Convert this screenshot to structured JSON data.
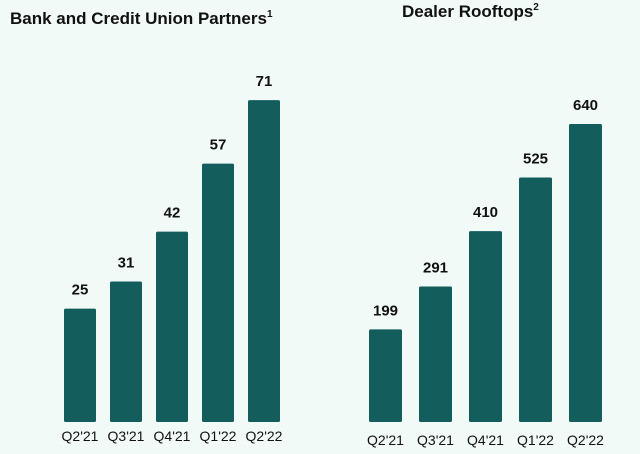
{
  "colors": {
    "bar": "#135e5c",
    "background": "#f2faf8",
    "text": "#111111"
  },
  "chart_data": [
    {
      "type": "bar",
      "title": "Bank and Credit Union Partners",
      "title_superscript": "1",
      "categories": [
        "Q2'21",
        "Q3'21",
        "Q4'21",
        "Q1'22",
        "Q2'22"
      ],
      "values": [
        25,
        31,
        42,
        57,
        71
      ],
      "xlabel": "",
      "ylabel": "",
      "ylim": [
        0,
        75
      ],
      "grid": false
    },
    {
      "type": "bar",
      "title": "Dealer Rooftops",
      "title_superscript": "2",
      "categories": [
        "Q2'21",
        "Q3'21",
        "Q4'21",
        "Q1'22",
        "Q2'22"
      ],
      "values": [
        199,
        291,
        410,
        525,
        640
      ],
      "xlabel": "",
      "ylabel": "",
      "ylim": [
        0,
        655
      ],
      "grid": false
    }
  ]
}
